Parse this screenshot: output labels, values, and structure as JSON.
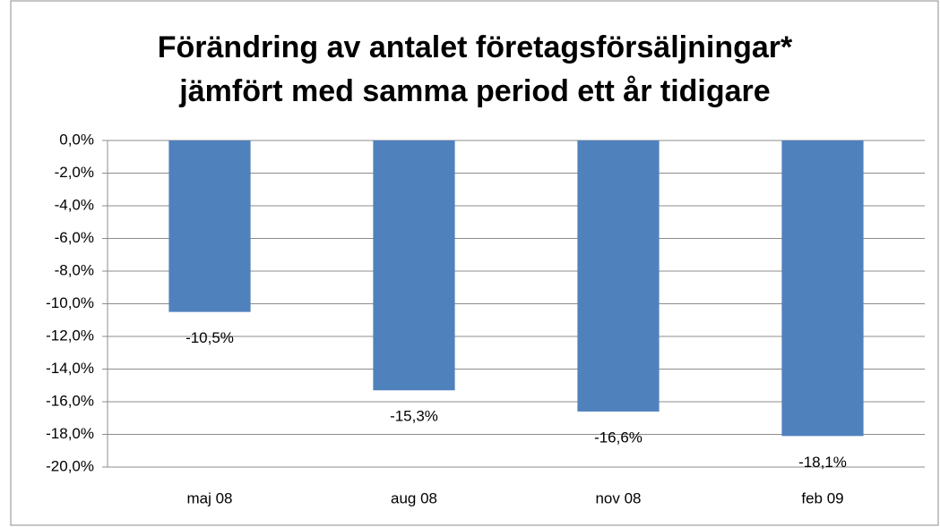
{
  "chart_data": {
    "type": "bar",
    "title": [
      "Förändring av antalet företagsförsäljningar*",
      "jämfört med samma period ett år tidigare"
    ],
    "categories": [
      "maj 08",
      "aug 08",
      "nov 08",
      "feb 09"
    ],
    "values": [
      -10.5,
      -15.3,
      -16.6,
      -18.1
    ],
    "value_labels": [
      "-10,5%",
      "-15,3%",
      "-16,6%",
      "-18,1%"
    ],
    "color": "#4f81bd",
    "ylim": [
      -20,
      0
    ],
    "yticks": [
      {
        "value": 0,
        "label": "0,0%"
      },
      {
        "value": -2,
        "label": "-2,0%"
      },
      {
        "value": -4,
        "label": "-4,0%"
      },
      {
        "value": -6,
        "label": "-6,0%"
      },
      {
        "value": -8,
        "label": "-8,0%"
      },
      {
        "value": -10,
        "label": "-10,0%"
      },
      {
        "value": -12,
        "label": "-12,0%"
      },
      {
        "value": -14,
        "label": "-14,0%"
      },
      {
        "value": -16,
        "label": "-16,0%"
      },
      {
        "value": -18,
        "label": "-18,0%"
      },
      {
        "value": -20,
        "label": "-20,0%"
      }
    ],
    "grid": true
  }
}
